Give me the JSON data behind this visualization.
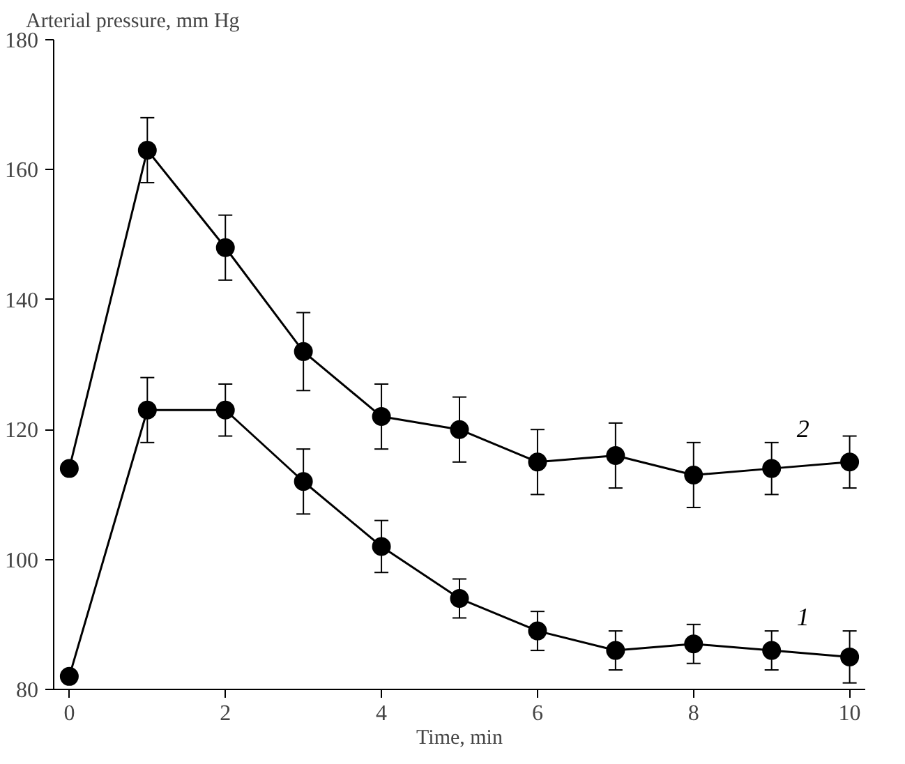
{
  "chart_data": {
    "type": "line",
    "ylabel": "Arterial pressure, mm Hg",
    "xlabel": "Time, min",
    "x": [
      0,
      1,
      2,
      3,
      4,
      5,
      6,
      7,
      8,
      9,
      10
    ],
    "xlim": [
      -0.2,
      10.2
    ],
    "ylim": [
      80,
      180
    ],
    "xticks": [
      0,
      2,
      4,
      6,
      8,
      10
    ],
    "yticks": [
      80,
      100,
      120,
      140,
      160,
      180
    ],
    "marker": "circle",
    "grid": false,
    "series": [
      {
        "name": "1",
        "color": "#000000",
        "values": [
          82,
          123,
          123,
          112,
          102,
          94,
          89,
          86,
          87,
          86,
          85
        ],
        "errors": [
          null,
          5,
          4,
          5,
          4,
          3,
          3,
          3,
          3,
          3,
          4
        ]
      },
      {
        "name": "2",
        "color": "#000000",
        "values": [
          114,
          163,
          148,
          132,
          122,
          120,
          115,
          116,
          113,
          114,
          115
        ],
        "errors": [
          null,
          5,
          5,
          6,
          5,
          5,
          5,
          5,
          5,
          4,
          4
        ]
      }
    ]
  }
}
